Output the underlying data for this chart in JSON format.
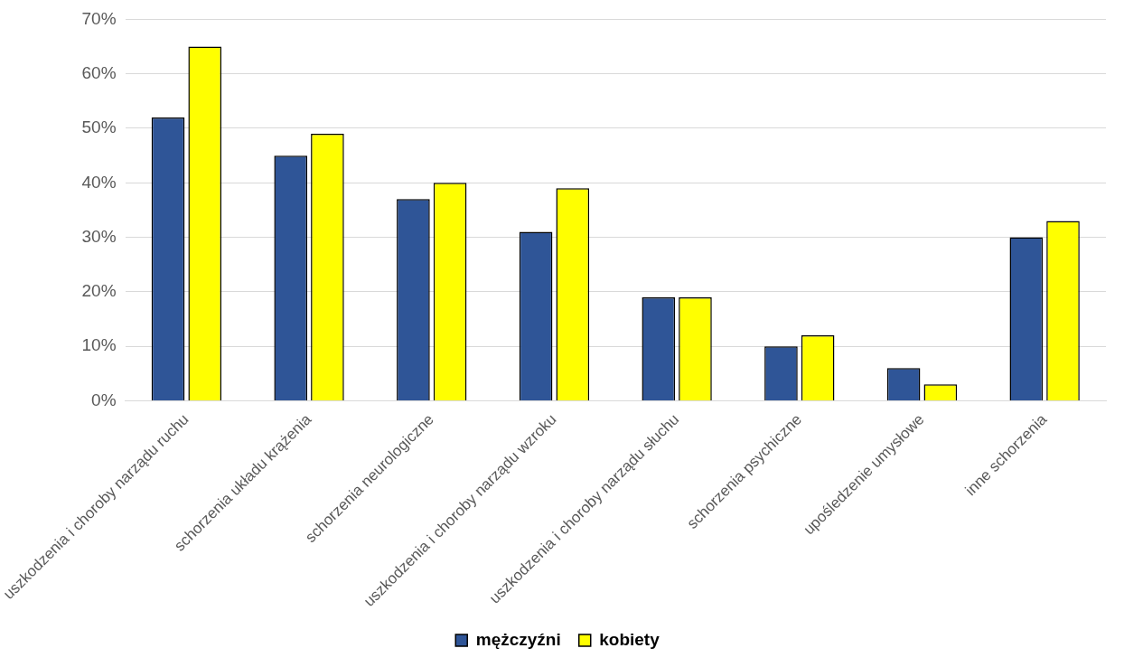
{
  "chart_data": {
    "type": "bar",
    "categories": [
      "uszkodzenia i choroby narządu ruchu",
      "schorzenia układu krążenia",
      "schorzenia neurologiczne",
      "uszkodzenia i choroby narządu wzroku",
      "uszkodzenia i choroby narządu słuchu",
      "schorzenia psychiczne",
      "upośledzenie umysłowe",
      "inne schorzenia"
    ],
    "series": [
      {
        "name": "mężczyźni",
        "color": "#2f5597",
        "values": [
          52,
          45,
          37,
          31,
          19,
          10,
          6,
          30
        ]
      },
      {
        "name": "kobiety",
        "color": "#ffff00",
        "values": [
          65,
          49,
          40,
          39,
          19,
          12,
          3,
          33
        ]
      }
    ],
    "ylim": [
      0,
      70
    ],
    "yticks": [
      {
        "value": 0,
        "label": "0%"
      },
      {
        "value": 10,
        "label": "10%"
      },
      {
        "value": 20,
        "label": "20%"
      },
      {
        "value": 30,
        "label": "30%"
      },
      {
        "value": 40,
        "label": "40%"
      },
      {
        "value": 50,
        "label": "50%"
      },
      {
        "value": 60,
        "label": "60%"
      },
      {
        "value": 70,
        "label": "70%"
      }
    ],
    "grid": "y",
    "legend": "bottom"
  }
}
